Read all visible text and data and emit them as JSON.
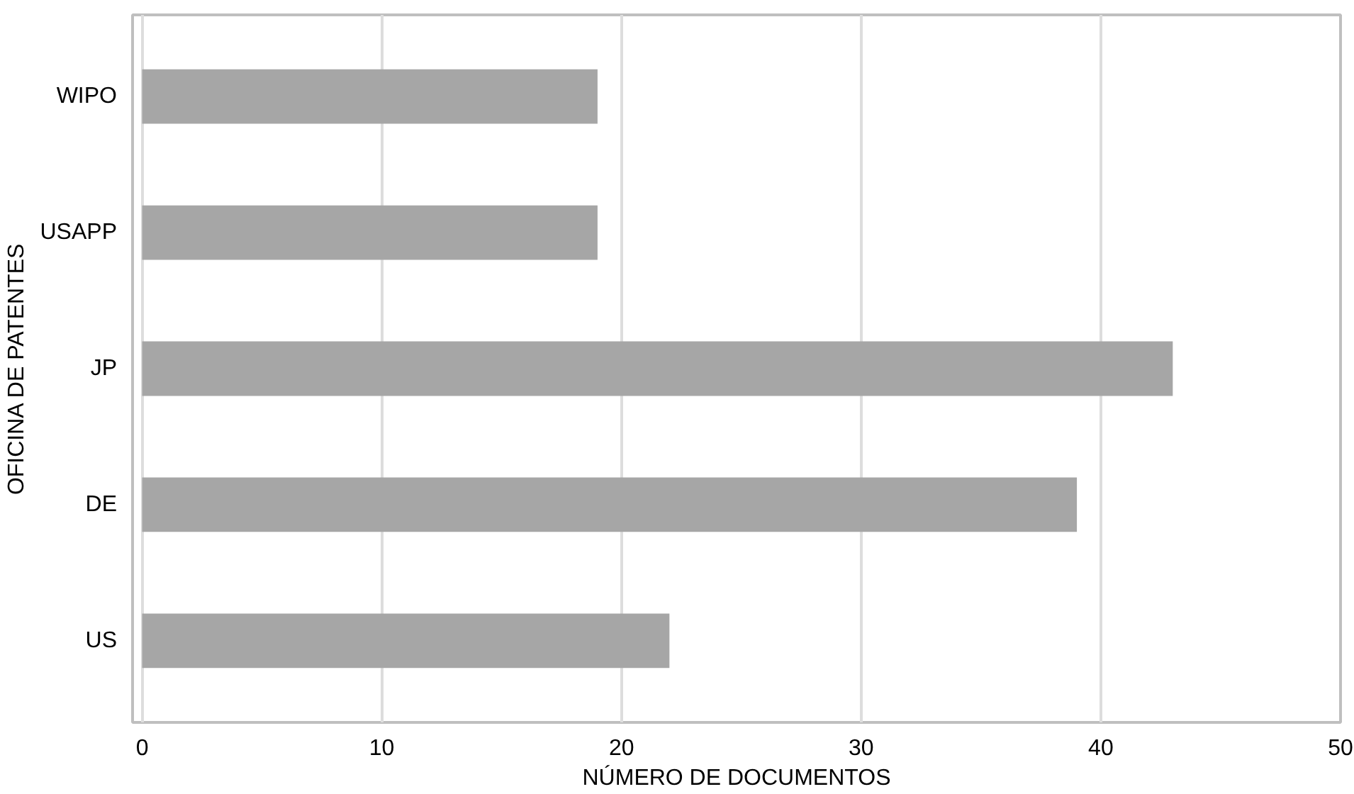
{
  "chart_data": {
    "type": "bar",
    "orientation": "horizontal",
    "xlabel": "NÚMERO DE DOCUMENTOS",
    "ylabel": "OFICINA DE PATENTES",
    "categories": [
      "WIPO",
      "USAPP",
      "JP",
      "DE",
      "US"
    ],
    "values": [
      19,
      19,
      43,
      39,
      22
    ],
    "color": "#a6a6a6",
    "xlim": [
      -0.4,
      50
    ],
    "xticks": [
      0,
      10,
      20,
      30,
      40,
      50
    ],
    "grid": "x"
  }
}
